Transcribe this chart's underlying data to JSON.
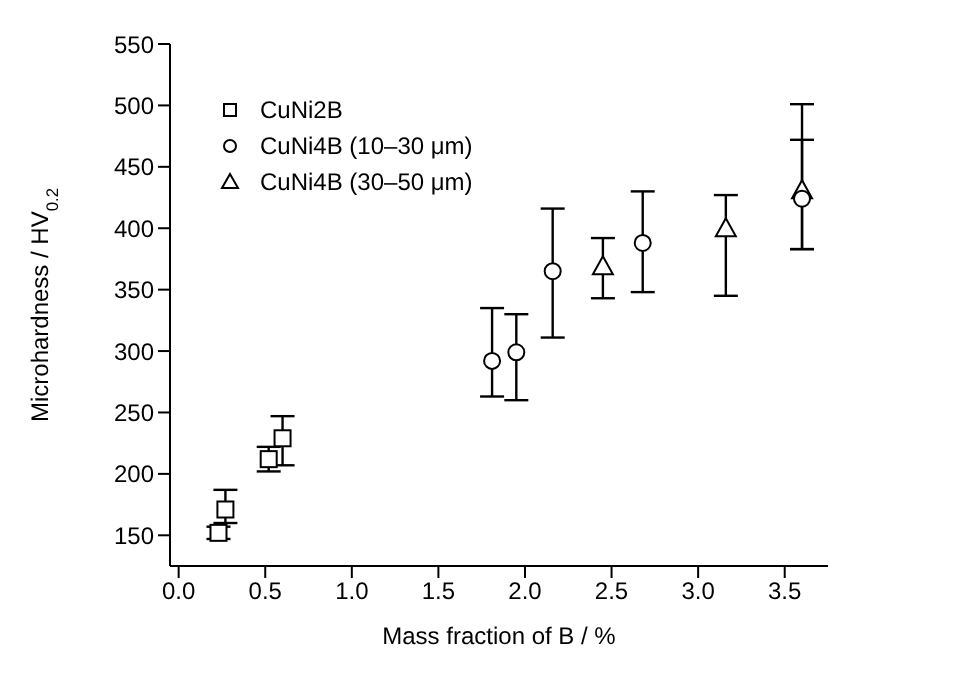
{
  "chart_data": {
    "type": "scatter",
    "xlabel": "Mass fraction of B / %",
    "ylabel": "Microhardness / HV$_{0.2}$",
    "xlim": [
      -0.05,
      3.75
    ],
    "xticks": [
      {
        "value": 0,
        "label": "0.0"
      },
      {
        "value": 0.5,
        "label": "0.5"
      },
      {
        "value": 1,
        "label": "1.0"
      },
      {
        "value": 1.5,
        "label": "1.5"
      },
      {
        "value": 2,
        "label": "2.0"
      },
      {
        "value": 2.5,
        "label": "2.5"
      },
      {
        "value": 3,
        "label": "3.0"
      },
      {
        "value": 3.5,
        "label": "3.5"
      }
    ],
    "ylim": [
      125,
      550
    ],
    "yticks": [
      150,
      200,
      250,
      300,
      350,
      400,
      450,
      500,
      550
    ],
    "grid": false,
    "legend": "top left",
    "series": [
      {
        "name": "CuNi2B",
        "color": "#000000",
        "marker": "square",
        "x": [
          0.23,
          0.27,
          0.52,
          0.6
        ],
        "values": [
          152,
          171,
          212,
          229
        ],
        "errors": [
          [
            147,
            157
          ],
          [
            160,
            187
          ],
          [
            202,
            222
          ],
          [
            207,
            247
          ]
        ]
      },
      {
        "name": "CuNi4B (10–30 μm)",
        "color": "#000000",
        "marker": "circle",
        "x": [
          1.81,
          1.95,
          2.16,
          2.68,
          3.6
        ],
        "values": [
          292,
          299,
          365,
          388,
          424
        ],
        "errors": [
          [
            263,
            335
          ],
          [
            260,
            330
          ],
          [
            311,
            416
          ],
          [
            348,
            430
          ],
          [
            383,
            472
          ]
        ]
      },
      {
        "name": "CuNi4B (30–50 μm)",
        "color": "#000000",
        "marker": "triangle",
        "x": [
          2.45,
          3.16,
          3.6
        ],
        "values": [
          369,
          400,
          431
        ],
        "errors": [
          [
            343,
            392
          ],
          [
            345,
            427
          ],
          [
            383,
            501
          ]
        ]
      }
    ]
  }
}
